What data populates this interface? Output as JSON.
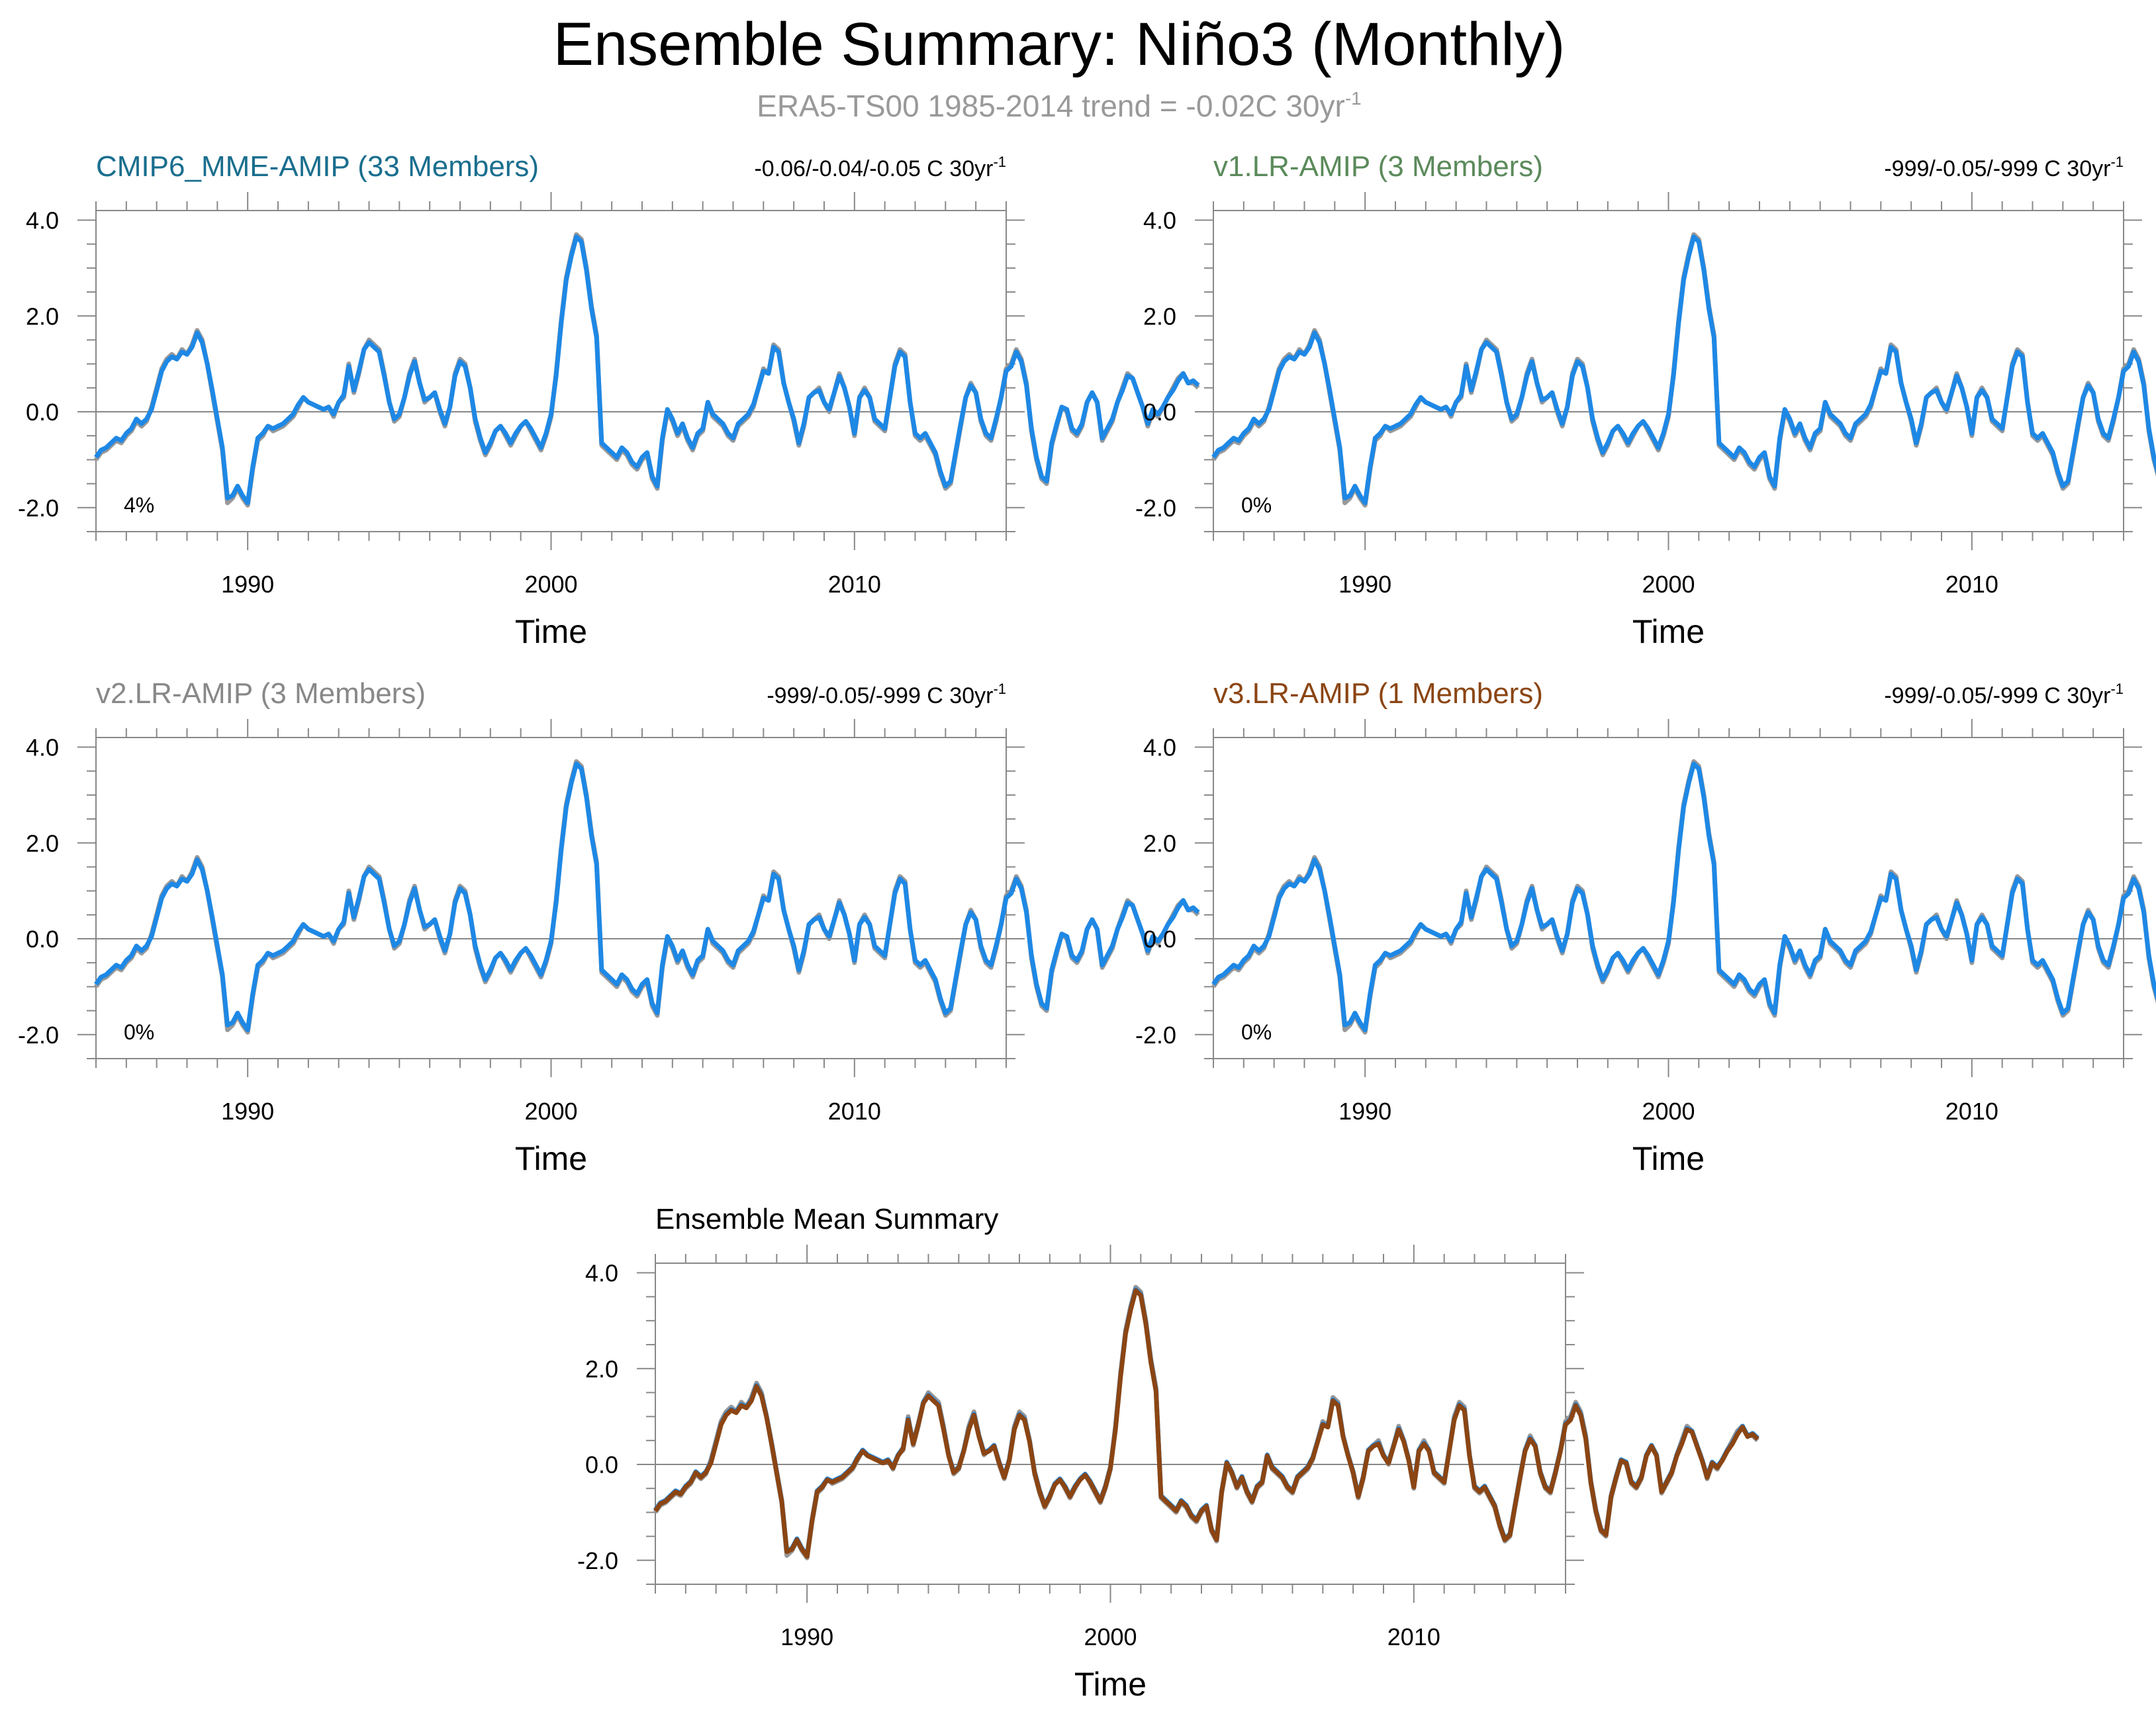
{
  "title": "Ensemble Summary: Niño3 (Monthly)",
  "subtitle": {
    "text": "ERA5-TS00 1985-2014 trend = -0.02C 30yr",
    "sup": "-1"
  },
  "colors": {
    "obs": "#999999",
    "model": "#1e88e5",
    "mean": "#8b4513",
    "title_cmip6": "#1a6e8e",
    "title_v1": "#5b8a5b",
    "title_v2": "#888888",
    "title_v3": "#8b4513",
    "title_mean": "#000000",
    "subtitle": "#999999"
  },
  "chart_data": [
    {
      "type": "line",
      "panel_id": "cmip6",
      "title": "CMIP6_MME-AMIP (33 Members)",
      "trend": "-0.06/-0.04/-0.05 C 30yr",
      "trend_sup": "-1",
      "percent": "4%",
      "xlabel": "Time",
      "ylabel": "",
      "xlim": [
        1985.0,
        2015.0
      ],
      "ylim": [
        -2.5,
        4.2
      ],
      "xticks": [
        1990,
        2000,
        2010
      ],
      "yticks": [
        -2.0,
        0.0,
        2.0,
        4.0
      ],
      "series": [
        {
          "name": "ERA5-TS00",
          "role": "obs"
        },
        {
          "name": "CMIP6_MME-AMIP",
          "role": "model"
        }
      ]
    },
    {
      "type": "line",
      "panel_id": "v1",
      "title": "v1.LR-AMIP (3 Members)",
      "trend": "-999/-0.05/-999 C 30yr",
      "trend_sup": "-1",
      "percent": "0%",
      "xlabel": "Time",
      "ylabel": "",
      "xlim": [
        1985.0,
        2015.0
      ],
      "ylim": [
        -2.5,
        4.2
      ],
      "xticks": [
        1990,
        2000,
        2010
      ],
      "yticks": [
        -2.0,
        0.0,
        2.0,
        4.0
      ],
      "series": [
        {
          "name": "ERA5-TS00",
          "role": "obs"
        },
        {
          "name": "v1.LR-AMIP",
          "role": "model"
        }
      ]
    },
    {
      "type": "line",
      "panel_id": "v2",
      "title": "v2.LR-AMIP (3 Members)",
      "trend": "-999/-0.05/-999 C 30yr",
      "trend_sup": "-1",
      "percent": "0%",
      "xlabel": "Time",
      "ylabel": "",
      "xlim": [
        1985.0,
        2015.0
      ],
      "ylim": [
        -2.5,
        4.2
      ],
      "xticks": [
        1990,
        2000,
        2010
      ],
      "yticks": [
        -2.0,
        0.0,
        2.0,
        4.0
      ],
      "series": [
        {
          "name": "ERA5-TS00",
          "role": "obs"
        },
        {
          "name": "v2.LR-AMIP",
          "role": "model"
        }
      ]
    },
    {
      "type": "line",
      "panel_id": "v3",
      "title": "v3.LR-AMIP (1 Members)",
      "trend": "-999/-0.05/-999 C 30yr",
      "trend_sup": "-1",
      "percent": "0%",
      "xlabel": "Time",
      "ylabel": "",
      "xlim": [
        1985.0,
        2015.0
      ],
      "ylim": [
        -2.5,
        4.2
      ],
      "xticks": [
        1990,
        2000,
        2010
      ],
      "yticks": [
        -2.0,
        0.0,
        2.0,
        4.0
      ],
      "series": [
        {
          "name": "ERA5-TS00",
          "role": "obs"
        },
        {
          "name": "v3.LR-AMIP",
          "role": "model"
        }
      ]
    },
    {
      "type": "line",
      "panel_id": "mean",
      "title": "Ensemble Mean Summary",
      "trend": "",
      "trend_sup": "",
      "percent": "",
      "xlabel": "Time",
      "ylabel": "",
      "xlim": [
        1985.0,
        2015.0
      ],
      "ylim": [
        -2.5,
        4.2
      ],
      "xticks": [
        1990,
        2000,
        2010
      ],
      "yticks": [
        -2.0,
        0.0,
        2.0,
        4.0
      ],
      "series": [
        {
          "name": "ERA5-TS00",
          "role": "obs"
        },
        {
          "name": "CMIP6_MME-AMIP",
          "role": "model"
        },
        {
          "name": "Ensemble Mean",
          "role": "mean"
        }
      ]
    }
  ],
  "series_values": {
    "t_start": 1985.0,
    "t_step": 0.1666667,
    "note": "bi-monthly anomalies (C), 1985.0-2015.0",
    "obs": [
      -1.0,
      -0.85,
      -0.8,
      -0.7,
      -0.6,
      -0.65,
      -0.5,
      -0.4,
      -0.2,
      -0.3,
      -0.2,
      0.1,
      0.5,
      0.9,
      1.1,
      1.2,
      1.1,
      1.3,
      1.2,
      1.4,
      1.7,
      1.5,
      1.0,
      0.4,
      -0.2,
      -0.8,
      -1.9,
      -1.8,
      -1.6,
      -1.8,
      -1.95,
      -1.2,
      -0.6,
      -0.5,
      -0.3,
      -0.4,
      -0.35,
      -0.3,
      -0.2,
      -0.1,
      0.1,
      0.3,
      0.2,
      0.15,
      0.1,
      0.05,
      0.1,
      -0.1,
      0.2,
      0.3,
      1.0,
      0.4,
      0.8,
      1.3,
      1.5,
      1.4,
      1.3,
      0.8,
      0.2,
      -0.2,
      -0.1,
      0.3,
      0.8,
      1.1,
      0.6,
      0.2,
      0.3,
      0.4,
      0.0,
      -0.3,
      0.1,
      0.8,
      1.1,
      1.0,
      0.5,
      -0.2,
      -0.6,
      -0.9,
      -0.7,
      -0.4,
      -0.3,
      -0.5,
      -0.7,
      -0.5,
      -0.3,
      -0.2,
      -0.4,
      -0.6,
      -0.8,
      -0.5,
      -0.1,
      0.8,
      1.9,
      2.8,
      3.3,
      3.7,
      3.6,
      3.0,
      2.2,
      1.6,
      -0.7,
      -0.8,
      -0.9,
      -1.0,
      -0.8,
      -0.9,
      -1.1,
      -1.2,
      -1.0,
      -0.9,
      -1.4,
      -1.6,
      -0.6,
      0.0,
      -0.2,
      -0.5,
      -0.3,
      -0.6,
      -0.8,
      -0.5,
      -0.4,
      0.2,
      -0.1,
      -0.2,
      -0.3,
      -0.5,
      -0.6,
      -0.3,
      -0.2,
      -0.1,
      0.1,
      0.5,
      0.9,
      0.8,
      1.4,
      1.3,
      0.6,
      0.2,
      -0.2,
      -0.7,
      -0.3,
      0.3,
      0.4,
      0.5,
      0.2,
      0.0,
      0.4,
      0.8,
      0.5,
      0.1,
      -0.5,
      0.3,
      0.5,
      0.3,
      -0.2,
      -0.3,
      -0.4,
      0.3,
      1.0,
      1.3,
      1.2,
      0.2,
      -0.5,
      -0.6,
      -0.5,
      -0.7,
      -0.9,
      -1.3,
      -1.6,
      -1.5,
      -0.9,
      -0.3,
      0.3,
      0.6,
      0.4,
      -0.2,
      -0.5,
      -0.6,
      -0.2,
      0.3,
      0.9,
      1.0,
      1.3,
      1.1,
      0.6,
      -0.4,
      -1.0,
      -1.4,
      -1.5,
      -0.7,
      -0.3,
      0.1,
      0.0,
      -0.4,
      -0.5,
      -0.3,
      0.2,
      0.4,
      0.2,
      -0.6,
      -0.4,
      -0.2,
      0.2,
      0.5,
      0.8,
      0.7,
      0.4,
      0.1,
      -0.3,
      0.0,
      -0.1,
      0.1,
      0.3,
      0.5,
      0.7,
      0.8,
      0.6,
      0.6,
      0.5
    ],
    "model": [
      -0.95,
      -0.8,
      -0.75,
      -0.65,
      -0.55,
      -0.6,
      -0.45,
      -0.35,
      -0.15,
      -0.25,
      -0.15,
      0.05,
      0.45,
      0.85,
      1.05,
      1.15,
      1.1,
      1.25,
      1.2,
      1.35,
      1.65,
      1.45,
      1.0,
      0.45,
      -0.15,
      -0.75,
      -1.8,
      -1.75,
      -1.55,
      -1.75,
      -1.9,
      -1.15,
      -0.55,
      -0.45,
      -0.3,
      -0.35,
      -0.3,
      -0.25,
      -0.15,
      -0.05,
      0.15,
      0.3,
      0.2,
      0.15,
      0.1,
      0.05,
      0.1,
      -0.05,
      0.2,
      0.35,
      0.95,
      0.45,
      0.85,
      1.3,
      1.45,
      1.35,
      1.25,
      0.75,
      0.2,
      -0.15,
      -0.05,
      0.3,
      0.75,
      1.05,
      0.6,
      0.25,
      0.3,
      0.4,
      0.05,
      -0.25,
      0.1,
      0.75,
      1.05,
      0.95,
      0.5,
      -0.15,
      -0.55,
      -0.85,
      -0.65,
      -0.4,
      -0.3,
      -0.45,
      -0.65,
      -0.45,
      -0.3,
      -0.2,
      -0.35,
      -0.55,
      -0.75,
      -0.45,
      -0.05,
      0.75,
      1.85,
      2.75,
      3.25,
      3.65,
      3.55,
      2.95,
      2.15,
      1.55,
      -0.65,
      -0.75,
      -0.85,
      -0.95,
      -0.75,
      -0.85,
      -1.05,
      -1.15,
      -0.95,
      -0.85,
      -1.35,
      -1.55,
      -0.55,
      0.05,
      -0.15,
      -0.45,
      -0.25,
      -0.55,
      -0.75,
      -0.45,
      -0.35,
      0.2,
      -0.05,
      -0.15,
      -0.25,
      -0.45,
      -0.55,
      -0.25,
      -0.15,
      -0.05,
      0.15,
      0.5,
      0.85,
      0.8,
      1.35,
      1.25,
      0.6,
      0.2,
      -0.15,
      -0.65,
      -0.25,
      0.3,
      0.4,
      0.45,
      0.2,
      0.05,
      0.4,
      0.75,
      0.5,
      0.1,
      -0.45,
      0.3,
      0.45,
      0.3,
      -0.15,
      -0.25,
      -0.35,
      0.3,
      0.95,
      1.25,
      1.15,
      0.2,
      -0.45,
      -0.55,
      -0.45,
      -0.65,
      -0.85,
      -1.25,
      -1.55,
      -1.45,
      -0.85,
      -0.25,
      0.3,
      0.55,
      0.4,
      -0.15,
      -0.45,
      -0.55,
      -0.15,
      0.3,
      0.85,
      0.95,
      1.25,
      1.05,
      0.55,
      -0.35,
      -0.95,
      -1.35,
      -1.45,
      -0.65,
      -0.25,
      0.1,
      0.05,
      -0.35,
      -0.45,
      -0.25,
      0.2,
      0.4,
      0.2,
      -0.55,
      -0.35,
      -0.15,
      0.2,
      0.45,
      0.75,
      0.7,
      0.4,
      0.1,
      -0.25,
      0.05,
      -0.05,
      0.1,
      0.3,
      0.45,
      0.65,
      0.8,
      0.6,
      0.65,
      0.55
    ]
  }
}
